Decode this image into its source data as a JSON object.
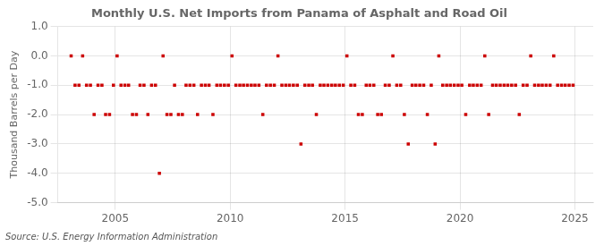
{
  "chart_data": {
    "type": "scatter",
    "title": "Monthly U.S. Net Imports from Panama of Asphalt and Road Oil",
    "ylabel": "Thousand Barrels per Day",
    "annotation": "Source: U.S. Energy Information Administration",
    "color": "#cc0000",
    "marker": "square",
    "grid": true,
    "xlim": [
      2002.5,
      2025.8
    ],
    "xticks": [
      2005,
      2010,
      2015,
      2020,
      2025
    ],
    "ylim": [
      -5.0,
      1.0
    ],
    "yticks": [
      {
        "value": 1.0,
        "label": "1.0"
      },
      {
        "value": 0.0,
        "label": "0.0"
      },
      {
        "value": -1.0,
        "label": "-1.0"
      },
      {
        "value": -2.0,
        "label": "-2.0"
      },
      {
        "value": -3.0,
        "label": "-3.0"
      },
      {
        "value": -4.0,
        "label": "-4.0"
      },
      {
        "value": -5.0,
        "label": "-5.0"
      }
    ],
    "x": [
      2003.08,
      2003.25,
      2003.42,
      2003.58,
      2003.75,
      2003.92,
      2004.08,
      2004.25,
      2004.42,
      2004.58,
      2004.75,
      2004.92,
      2005.08,
      2005.25,
      2005.42,
      2005.58,
      2005.75,
      2005.92,
      2006.08,
      2006.25,
      2006.42,
      2006.58,
      2006.75,
      2006.92,
      2007.08,
      2007.25,
      2007.42,
      2007.58,
      2007.75,
      2007.92,
      2008.08,
      2008.25,
      2008.42,
      2008.58,
      2008.75,
      2008.92,
      2009.08,
      2009.25,
      2009.42,
      2009.58,
      2009.75,
      2009.92,
      2010.08,
      2010.25,
      2010.42,
      2010.58,
      2010.75,
      2010.92,
      2011.08,
      2011.25,
      2011.42,
      2011.58,
      2011.75,
      2011.92,
      2012.08,
      2012.25,
      2012.42,
      2012.58,
      2012.75,
      2012.92,
      2013.08,
      2013.25,
      2013.42,
      2013.58,
      2013.75,
      2013.92,
      2014.08,
      2014.25,
      2014.42,
      2014.58,
      2014.75,
      2014.92,
      2015.08,
      2015.25,
      2015.42,
      2015.58,
      2015.75,
      2015.92,
      2016.08,
      2016.25,
      2016.42,
      2016.58,
      2016.75,
      2016.92,
      2017.08,
      2017.25,
      2017.42,
      2017.58,
      2017.75,
      2017.92,
      2018.08,
      2018.25,
      2018.42,
      2018.58,
      2018.75,
      2018.92,
      2019.08,
      2019.25,
      2019.42,
      2019.58,
      2019.75,
      2019.92,
      2020.08,
      2020.25,
      2020.42,
      2020.58,
      2020.75,
      2020.92,
      2021.08,
      2021.25,
      2021.42,
      2021.58,
      2021.75,
      2021.92,
      2022.08,
      2022.25,
      2022.42,
      2022.58,
      2022.75,
      2022.92,
      2023.08,
      2023.25,
      2023.42,
      2023.58,
      2023.75,
      2023.92,
      2024.08,
      2024.25,
      2024.42,
      2024.58,
      2024.75,
      2024.92
    ],
    "values": [
      0.0,
      -1.0,
      -1.0,
      0.0,
      -1.0,
      -1.0,
      -2.0,
      -1.0,
      -1.0,
      -2.0,
      -2.0,
      -1.0,
      0.0,
      -1.0,
      -1.0,
      -1.0,
      -2.0,
      -2.0,
      -1.0,
      -1.0,
      -2.0,
      -1.0,
      -1.0,
      -4.0,
      0.0,
      -2.0,
      -2.0,
      -1.0,
      -2.0,
      -2.0,
      -1.0,
      -1.0,
      -1.0,
      -2.0,
      -1.0,
      -1.0,
      -1.0,
      -2.0,
      -1.0,
      -1.0,
      -1.0,
      -1.0,
      0.0,
      -1.0,
      -1.0,
      -1.0,
      -1.0,
      -1.0,
      -1.0,
      -1.0,
      -2.0,
      -1.0,
      -1.0,
      -1.0,
      0.0,
      -1.0,
      -1.0,
      -1.0,
      -1.0,
      -1.0,
      -3.0,
      -1.0,
      -1.0,
      -1.0,
      -2.0,
      -1.0,
      -1.0,
      -1.0,
      -1.0,
      -1.0,
      -1.0,
      -1.0,
      0.0,
      -1.0,
      -1.0,
      -2.0,
      -2.0,
      -1.0,
      -1.0,
      -1.0,
      -2.0,
      -2.0,
      -1.0,
      -1.0,
      0.0,
      -1.0,
      -1.0,
      -2.0,
      -3.0,
      -1.0,
      -1.0,
      -1.0,
      -1.0,
      -2.0,
      -1.0,
      -3.0,
      0.0,
      -1.0,
      -1.0,
      -1.0,
      -1.0,
      -1.0,
      -1.0,
      -2.0,
      -1.0,
      -1.0,
      -1.0,
      -1.0,
      0.0,
      -2.0,
      -1.0,
      -1.0,
      -1.0,
      -1.0,
      -1.0,
      -1.0,
      -1.0,
      -2.0,
      -1.0,
      -1.0,
      0.0,
      -1.0,
      -1.0,
      -1.0,
      -1.0,
      -1.0,
      0.0,
      -1.0,
      -1.0,
      -1.0,
      -1.0,
      -1.0
    ]
  }
}
